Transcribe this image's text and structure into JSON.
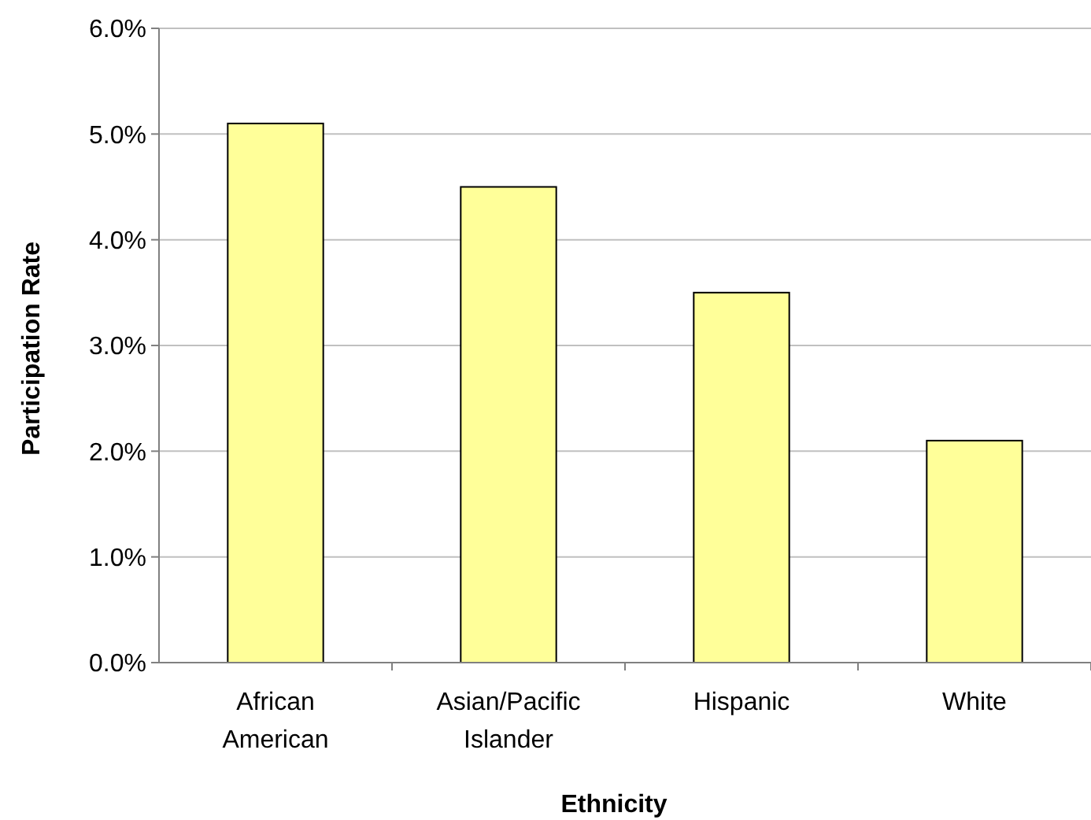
{
  "chart_data": {
    "type": "bar",
    "xlabel": "Ethnicity",
    "ylabel": "Participation Rate",
    "categories": [
      "African American",
      "Asian/Pacific Islander",
      "Hispanic",
      "White"
    ],
    "values": [
      5.1,
      4.5,
      3.5,
      2.1
    ],
    "color": "#ffff99",
    "ylim": [
      0,
      6
    ],
    "yticks": [
      {
        "value": 0,
        "label": "0.0%"
      },
      {
        "value": 1,
        "label": "1.0%"
      },
      {
        "value": 2,
        "label": "2.0%"
      },
      {
        "value": 3,
        "label": "3.0%"
      },
      {
        "value": 4,
        "label": "4.0%"
      },
      {
        "value": 5,
        "label": "5.0%"
      },
      {
        "value": 6,
        "label": "6.0%"
      }
    ],
    "grid": "y"
  }
}
